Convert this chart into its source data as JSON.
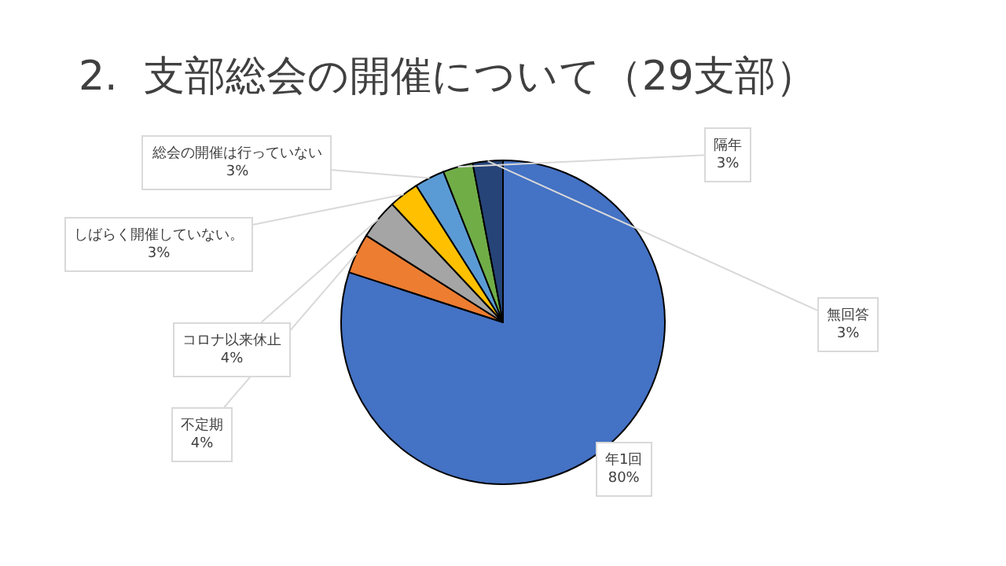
{
  "chart_data": {
    "type": "pie",
    "title": "2.  支部総会の開催について（29支部）",
    "categories": [
      "年1回",
      "不定期",
      "コロナ以来休止",
      "しばらく開催していない。",
      "総会の開催は行っていない",
      "隔年",
      "無回答"
    ],
    "values": [
      80,
      4,
      4,
      3,
      3,
      3,
      3
    ],
    "value_labels": [
      "80%",
      "4%",
      "4%",
      "3%",
      "3%",
      "3%",
      "3%"
    ],
    "colors": [
      "#4472c4",
      "#ed7d31",
      "#a5a5a5",
      "#ffc000",
      "#5b9bd5",
      "#70ad47",
      "#264478"
    ],
    "legend": false
  }
}
